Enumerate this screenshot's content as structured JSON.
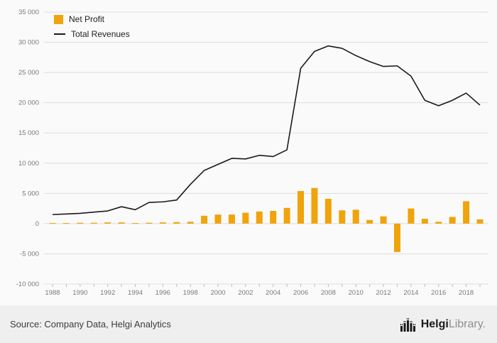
{
  "chart_data": {
    "type": "bar+line combo",
    "years": [
      1988,
      1989,
      1990,
      1991,
      1992,
      1993,
      1994,
      1995,
      1996,
      1997,
      1998,
      1999,
      2000,
      2001,
      2002,
      2003,
      2004,
      2005,
      2006,
      2007,
      2008,
      2009,
      2010,
      2011,
      2012,
      2013,
      2014,
      2015,
      2016,
      2017,
      2018,
      2019
    ],
    "series": [
      {
        "name": "Net Profit",
        "type": "bar",
        "color": "#F0A30A",
        "values": [
          100,
          100,
          150,
          150,
          200,
          200,
          100,
          150,
          200,
          250,
          300,
          1300,
          1500,
          1500,
          1800,
          2000,
          2100,
          2600,
          5400,
          5900,
          4100,
          2200,
          2300,
          600,
          1200,
          -4700,
          2500,
          800,
          300,
          1100,
          3700,
          700
        ]
      },
      {
        "name": "Total Revenues",
        "type": "line",
        "color": "#1a1a1a",
        "values": [
          1500,
          1600,
          1700,
          1900,
          2100,
          2800,
          2300,
          3500,
          3600,
          3900,
          6500,
          8800,
          9800,
          10800,
          10700,
          11300,
          11100,
          12200,
          25700,
          28500,
          29400,
          29000,
          27800,
          26800,
          26000,
          26100,
          24400,
          20400,
          19500,
          20400,
          21600,
          19600
        ]
      }
    ],
    "ylim": [
      -10000,
      35000
    ],
    "yticks": {
      "values": [
        35000,
        30000,
        25000,
        20000,
        15000,
        10000,
        5000,
        0,
        -5000,
        -10000
      ],
      "labels": [
        "35 000",
        "30 000",
        "25 000",
        "20 000",
        "15 000",
        "10 000",
        "5 000",
        "0",
        "-5 000",
        "-10 000"
      ]
    },
    "xtick_labels": [
      "1988",
      "1990",
      "1992",
      "1994",
      "1996",
      "1998",
      "2000",
      "2002",
      "2004",
      "2006",
      "2008",
      "2010",
      "2012",
      "2014",
      "2016",
      "2018"
    ],
    "grid": true,
    "legend_position": "top-left",
    "title": "",
    "xlabel": "",
    "ylabel": ""
  },
  "legend": {
    "net_profit_label": "Net Profit",
    "total_revenues_label": "Total Revenues"
  },
  "footer": {
    "source": "Source: Company Data, Helgi Analytics",
    "logo_helgi": "Helgi",
    "logo_library": "Library",
    "logo_period": "."
  },
  "colors": {
    "bar": "#F0A30A",
    "line": "#1a1a1a",
    "grid": "#dddddd",
    "tick_text": "#7a7a7a",
    "background": "#fafafa",
    "footer_background": "#efefef"
  }
}
